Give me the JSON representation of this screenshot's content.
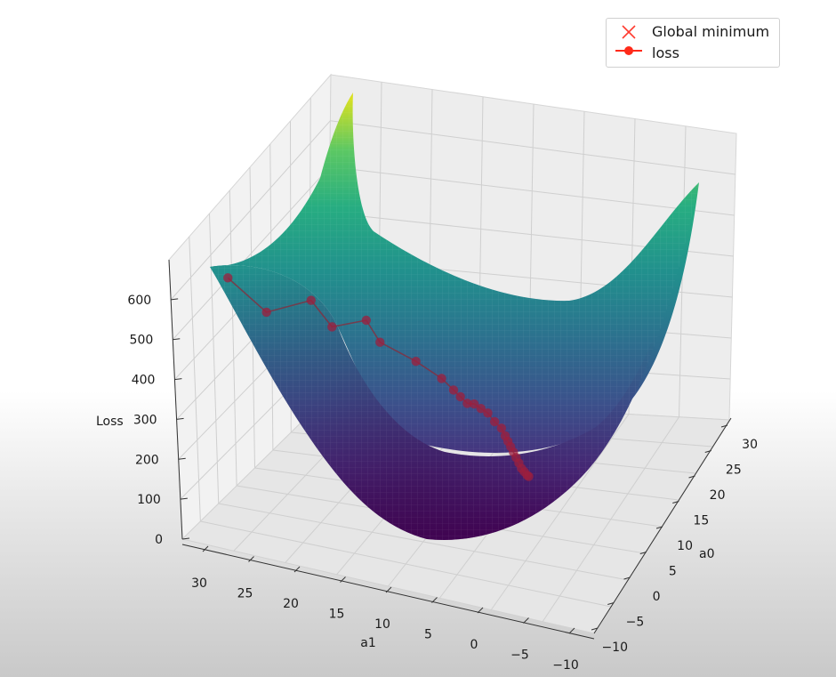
{
  "chart_data": {
    "type": "surface",
    "title": "",
    "xlabel": "a0",
    "ylabel": "a1",
    "zlabel": "Loss",
    "a0_ticks": [
      -10,
      -5,
      0,
      5,
      10,
      15,
      20,
      25,
      30
    ],
    "a1_ticks": [
      30,
      25,
      20,
      15,
      10,
      5,
      0,
      -5,
      -10
    ],
    "loss_ticks": [
      0,
      100,
      200,
      300,
      400,
      500,
      600
    ],
    "xlim": [
      -10,
      30
    ],
    "ylim": [
      -10,
      30
    ],
    "zlim": [
      0,
      700
    ],
    "colormap": "viridis",
    "grid": true,
    "legend": {
      "position": "top-right",
      "entries": [
        {
          "label": "Global minimum",
          "marker": "x",
          "color": "#ff3b30"
        },
        {
          "label": "loss",
          "marker": "o-",
          "color": "#ff2a1a"
        }
      ]
    },
    "loss_path": [
      {
        "a0": -8.0,
        "a1": 28.0,
        "loss": 640
      },
      {
        "a0": -3.0,
        "a1": 26.0,
        "loss": 520
      },
      {
        "a0": -2.0,
        "a1": 22.0,
        "loss": 560
      },
      {
        "a0": 1.0,
        "a1": 21.0,
        "loss": 470
      },
      {
        "a0": 2.0,
        "a1": 18.0,
        "loss": 490
      },
      {
        "a0": 3.0,
        "a1": 17.0,
        "loss": 430
      },
      {
        "a0": 4.5,
        "a1": 14.0,
        "loss": 380
      },
      {
        "a0": 6.0,
        "a1": 12.0,
        "loss": 330
      },
      {
        "a0": 6.5,
        "a1": 11.0,
        "loss": 300
      },
      {
        "a0": 7.0,
        "a1": 10.5,
        "loss": 280
      },
      {
        "a0": 7.5,
        "a1": 10.0,
        "loss": 260
      },
      {
        "a0": 8.0,
        "a1": 9.5,
        "loss": 255
      },
      {
        "a0": 8.5,
        "a1": 9.0,
        "loss": 240
      },
      {
        "a0": 9.0,
        "a1": 8.5,
        "loss": 225
      },
      {
        "a0": 9.5,
        "a1": 8.0,
        "loss": 200
      },
      {
        "a0": 10.0,
        "a1": 7.5,
        "loss": 180
      },
      {
        "a0": 10.2,
        "a1": 7.2,
        "loss": 160
      },
      {
        "a0": 10.4,
        "a1": 7.0,
        "loss": 145
      },
      {
        "a0": 10.6,
        "a1": 6.8,
        "loss": 130
      },
      {
        "a0": 10.8,
        "a1": 6.6,
        "loss": 115
      },
      {
        "a0": 11.0,
        "a1": 6.4,
        "loss": 100
      },
      {
        "a0": 11.2,
        "a1": 6.2,
        "loss": 85
      },
      {
        "a0": 11.4,
        "a1": 6.0,
        "loss": 70
      },
      {
        "a0": 11.6,
        "a1": 5.8,
        "loss": 60
      },
      {
        "a0": 11.8,
        "a1": 5.6,
        "loss": 50
      },
      {
        "a0": 12.0,
        "a1": 5.5,
        "loss": 45
      }
    ]
  }
}
